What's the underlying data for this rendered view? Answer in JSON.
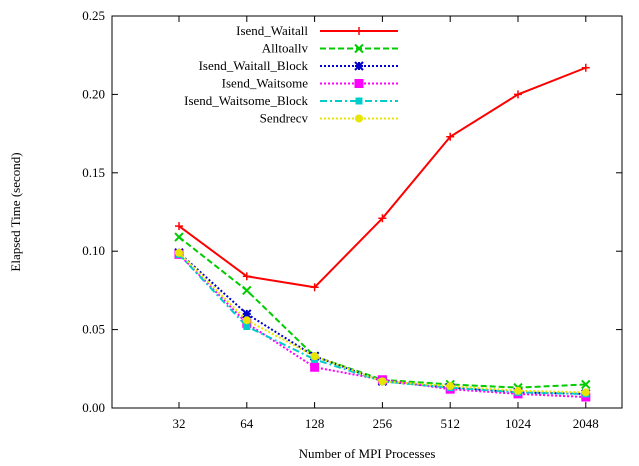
{
  "chart_data": {
    "type": "line",
    "xlabel": "Number of MPI Processes",
    "ylabel": "Elapsed Time (second)",
    "x_categories": [
      "32",
      "64",
      "128",
      "256",
      "512",
      "1024",
      "2048"
    ],
    "y_ticks": [
      "0.00",
      "0.05",
      "0.10",
      "0.15",
      "0.20",
      "0.25"
    ],
    "ylim": [
      0,
      0.25
    ],
    "grid": false,
    "legend_position": "top-left",
    "series": [
      {
        "name": "Isend_Waitall",
        "color": "#ff0000",
        "dash": "solid",
        "marker": "plus",
        "values": [
          0.116,
          0.084,
          0.077,
          0.121,
          0.173,
          0.2,
          0.217
        ]
      },
      {
        "name": "Alltoallv",
        "color": "#00cc00",
        "dash": "dashed",
        "marker": "x",
        "values": [
          0.109,
          0.075,
          0.033,
          0.018,
          0.015,
          0.013,
          0.015
        ]
      },
      {
        "name": "Isend_Waitall_Block",
        "color": "#0000cc",
        "dash": "dotted",
        "marker": "star",
        "values": [
          0.099,
          0.06,
          0.033,
          0.017,
          0.013,
          0.01,
          0.009
        ]
      },
      {
        "name": "Isend_Waitsome",
        "color": "#ff00ff",
        "dash": "dotted",
        "marker": "square",
        "values": [
          0.098,
          0.054,
          0.026,
          0.018,
          0.012,
          0.009,
          0.007
        ]
      },
      {
        "name": "Isend_Waitsome_Block",
        "color": "#00cccc",
        "dash": "dashdot",
        "marker": "filled-square",
        "values": [
          0.098,
          0.052,
          0.031,
          0.017,
          0.013,
          0.01,
          0.009
        ]
      },
      {
        "name": "Sendrecv",
        "color": "#e6e600",
        "dash": "dotted",
        "marker": "circle",
        "values": [
          0.099,
          0.056,
          0.033,
          0.017,
          0.014,
          0.011,
          0.01
        ]
      }
    ]
  }
}
